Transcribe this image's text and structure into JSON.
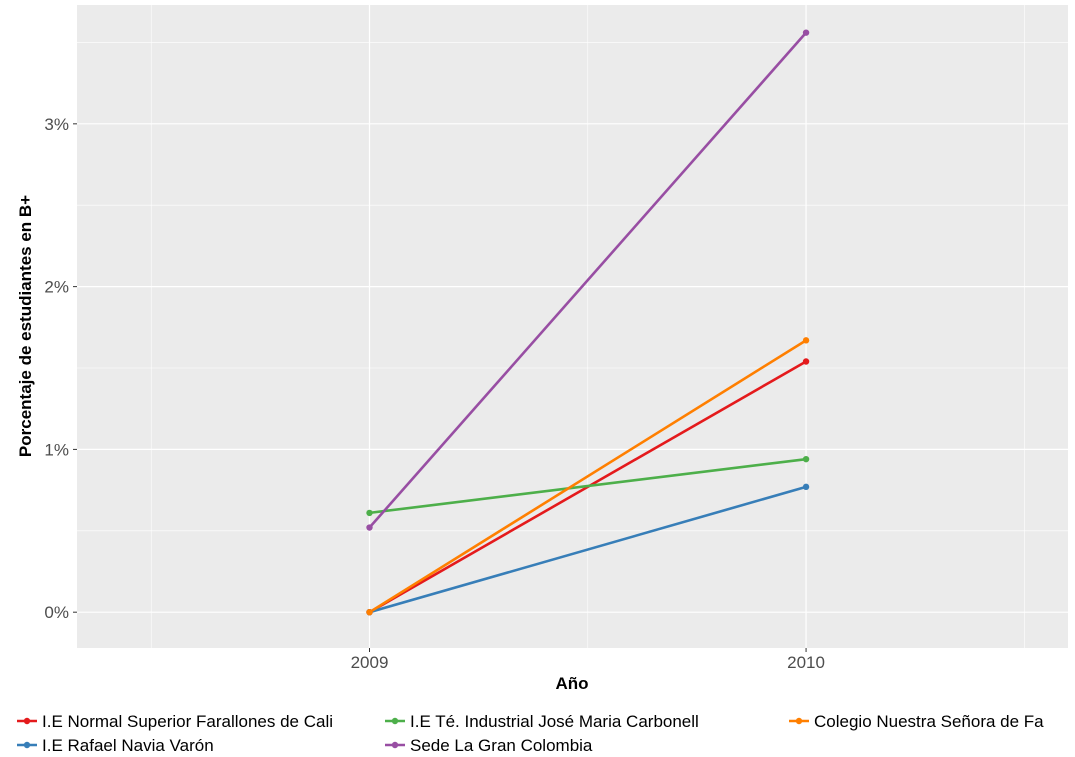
{
  "chart_data": {
    "type": "line",
    "title": "",
    "xlabel": "Año",
    "ylabel": "Porcentaje de estudiantes en B+",
    "x": [
      2009,
      2010
    ],
    "x_tick_labels": [
      "2009",
      "2010"
    ],
    "xlim": [
      2008.33,
      2010.6
    ],
    "ylim": [
      -0.0022,
      0.0373
    ],
    "y_ticks": [
      0,
      0.01,
      0.02,
      0.03
    ],
    "y_tick_labels": [
      "0%",
      "1%",
      "2%",
      "3%"
    ],
    "grid": true,
    "legend_position": "bottom",
    "series": [
      {
        "name": "I.E Normal Superior Farallones de Cali",
        "color": "#E41A1C",
        "values": [
          0.0,
          0.0154
        ]
      },
      {
        "name": "I.E Rafael Navia Varón",
        "color": "#377EB8",
        "values": [
          0.0,
          0.0077
        ]
      },
      {
        "name": "I.E Té. Industrial José Maria Carbonell",
        "color": "#4DAF4A",
        "values": [
          0.0061,
          0.0094
        ]
      },
      {
        "name": "Sede La Gran Colombia",
        "color": "#984EA3",
        "values": [
          0.0052,
          0.0356
        ]
      },
      {
        "name": "Colegio Nuestra Señora de Fa",
        "color": "#FF7F00",
        "values": [
          0.0,
          0.0167
        ]
      }
    ]
  }
}
